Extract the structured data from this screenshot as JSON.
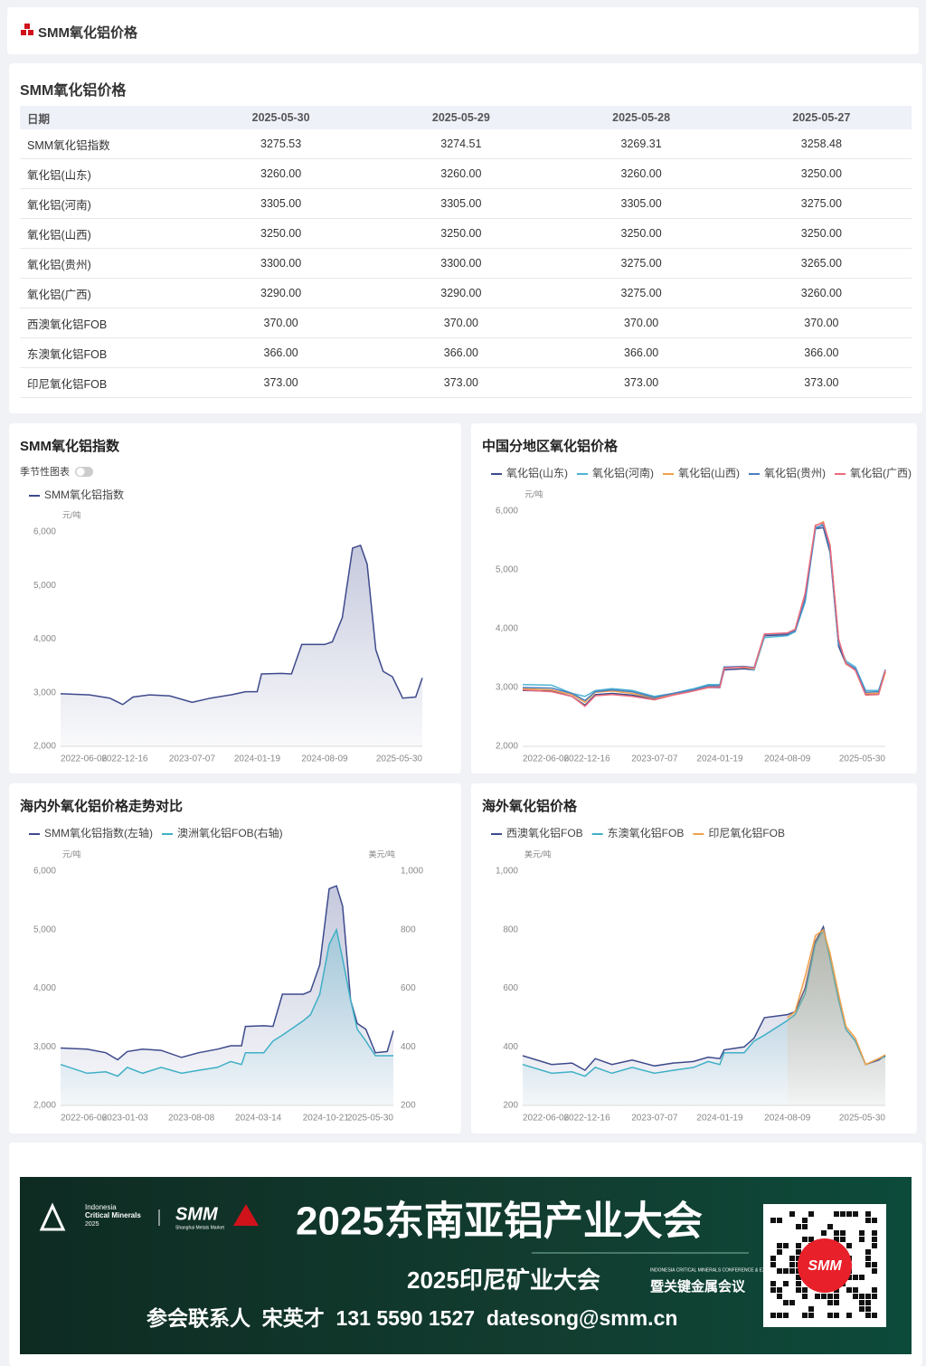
{
  "header": {
    "title": "SMM氧化铝价格"
  },
  "table": {
    "title": "SMM氧化铝价格",
    "columns": [
      "日期",
      "2025-05-30",
      "2025-05-29",
      "2025-05-28",
      "2025-05-27"
    ],
    "rows": [
      [
        "SMM氧化铝指数",
        "3275.53",
        "3274.51",
        "3269.31",
        "3258.48"
      ],
      [
        "氧化铝(山东)",
        "3260.00",
        "3260.00",
        "3260.00",
        "3250.00"
      ],
      [
        "氧化铝(河南)",
        "3305.00",
        "3305.00",
        "3305.00",
        "3275.00"
      ],
      [
        "氧化铝(山西)",
        "3250.00",
        "3250.00",
        "3250.00",
        "3250.00"
      ],
      [
        "氧化铝(贵州)",
        "3300.00",
        "3300.00",
        "3275.00",
        "3265.00"
      ],
      [
        "氧化铝(广西)",
        "3290.00",
        "3290.00",
        "3275.00",
        "3260.00"
      ],
      [
        "西澳氧化铝FOB",
        "370.00",
        "370.00",
        "370.00",
        "370.00"
      ],
      [
        "东澳氧化铝FOB",
        "366.00",
        "366.00",
        "366.00",
        "366.00"
      ],
      [
        "印尼氧化铝FOB",
        "373.00",
        "373.00",
        "373.00",
        "373.00"
      ]
    ]
  },
  "chart_data": [
    {
      "type": "line",
      "title": "SMM氧化铝指数",
      "toggle_label": "季节性图表",
      "y_unit": "元/吨",
      "area": true,
      "grid": false,
      "x": [
        "2022-06-06",
        "2022-09-01",
        "2022-11-01",
        "2022-12-10",
        "2023-01-10",
        "2023-03-01",
        "2023-05-01",
        "2023-07-07",
        "2023-09-01",
        "2023-11-01",
        "2023-12-15",
        "2024-01-19",
        "2024-02-01",
        "2024-04-01",
        "2024-05-01",
        "2024-06-01",
        "2024-08-09",
        "2024-09-01",
        "2024-10-01",
        "2024-11-01",
        "2024-11-25",
        "2024-12-15",
        "2025-01-10",
        "2025-02-01",
        "2025-03-01",
        "2025-04-01",
        "2025-05-10",
        "2025-05-30"
      ],
      "xlim": [
        "2022-06-06",
        "2025-05-30"
      ],
      "xticks": [
        "2022-06-06",
        "2022-12-16",
        "2023-07-07",
        "2024-01-19",
        "2024-08-09",
        "2025-05-30"
      ],
      "ylim": [
        2000,
        6000
      ],
      "yticks": [
        {
          "value": 2000,
          "label": "2,000"
        },
        {
          "value": 3000,
          "label": "3,000"
        },
        {
          "value": 4000,
          "label": "4,000"
        },
        {
          "value": 5000,
          "label": "5,000"
        },
        {
          "value": 6000,
          "label": "6,000"
        }
      ],
      "series": [
        {
          "name": "SMM氧化铝指数",
          "color": "#3e4a8c",
          "values": [
            2980,
            2960,
            2900,
            2780,
            2920,
            2960,
            2940,
            2820,
            2900,
            2960,
            3020,
            3020,
            3350,
            3360,
            3350,
            3900,
            3900,
            3950,
            4400,
            5700,
            5750,
            5400,
            3800,
            3400,
            3300,
            2900,
            2920,
            3275.53
          ]
        }
      ]
    },
    {
      "type": "line",
      "title": "中国分地区氧化铝价格",
      "y_unit": "元/吨",
      "area": false,
      "grid": false,
      "x": [
        "2022-06-06",
        "2022-09-01",
        "2022-11-01",
        "2022-12-10",
        "2023-01-10",
        "2023-03-01",
        "2023-05-01",
        "2023-07-07",
        "2023-09-01",
        "2023-11-01",
        "2023-12-15",
        "2024-01-19",
        "2024-02-01",
        "2024-04-01",
        "2024-05-01",
        "2024-06-01",
        "2024-08-09",
        "2024-09-01",
        "2024-10-01",
        "2024-11-01",
        "2024-11-25",
        "2024-12-15",
        "2025-01-10",
        "2025-02-01",
        "2025-03-01",
        "2025-04-01",
        "2025-05-10",
        "2025-05-30"
      ],
      "xlim": [
        "2022-06-06",
        "2025-05-30"
      ],
      "xticks": [
        "2022-06-06",
        "2022-12-16",
        "2023-07-07",
        "2024-01-19",
        "2024-08-09",
        "2025-05-30"
      ],
      "ylim": [
        2000,
        6000
      ],
      "yticks": [
        {
          "value": 2000,
          "label": "2,000"
        },
        {
          "value": 3000,
          "label": "3,000"
        },
        {
          "value": 4000,
          "label": "4,000"
        },
        {
          "value": 5000,
          "label": "5,000"
        },
        {
          "value": 6000,
          "label": "6,000"
        }
      ],
      "series": [
        {
          "name": "氧化铝(山东)",
          "color": "#3e4a8c",
          "values": [
            2950,
            2940,
            2850,
            2700,
            2880,
            2900,
            2870,
            2800,
            2880,
            2950,
            3000,
            3000,
            3300,
            3320,
            3300,
            3880,
            3900,
            3950,
            4500,
            5700,
            5720,
            5300,
            3700,
            3400,
            3300,
            2880,
            2900,
            3260
          ]
        },
        {
          "name": "氧化铝(河南)",
          "color": "#4fb3d4",
          "values": [
            3050,
            3040,
            2900,
            2850,
            2950,
            2980,
            2950,
            2850,
            2900,
            2980,
            3050,
            3050,
            3350,
            3350,
            3300,
            3850,
            3880,
            3950,
            4450,
            5700,
            5780,
            5350,
            3750,
            3450,
            3350,
            2950,
            2950,
            3305
          ]
        },
        {
          "name": "氧化铝(山西)",
          "color": "#f0a04b",
          "values": [
            2980,
            2960,
            2880,
            2750,
            2920,
            2940,
            2900,
            2820,
            2880,
            2950,
            3020,
            3020,
            3340,
            3340,
            3320,
            3900,
            3920,
            3980,
            4550,
            5750,
            5820,
            5400,
            3800,
            3400,
            3300,
            2900,
            2900,
            3250
          ]
        },
        {
          "name": "氧化铝(贵州)",
          "color": "#4a7fc1",
          "values": [
            3000,
            2990,
            2900,
            2780,
            2930,
            2960,
            2930,
            2830,
            2900,
            2960,
            3030,
            3030,
            3350,
            3360,
            3340,
            3900,
            3920,
            3960,
            4500,
            5720,
            5760,
            5380,
            3780,
            3420,
            3320,
            2920,
            2930,
            3300
          ]
        },
        {
          "name": "氧化铝(广西)",
          "color": "#ec6b7d",
          "values": [
            2960,
            2930,
            2850,
            2680,
            2860,
            2880,
            2850,
            2790,
            2870,
            2940,
            3000,
            3010,
            3330,
            3350,
            3330,
            3910,
            3930,
            3990,
            4600,
            5760,
            5800,
            5420,
            3820,
            3410,
            3290,
            2870,
            2880,
            3290
          ]
        }
      ]
    },
    {
      "type": "line",
      "title": "海内外氧化铝价格走势对比",
      "y_unit": "元/吨",
      "y2_unit": "美元/吨",
      "area": true,
      "grid": false,
      "x": [
        "2022-06-06",
        "2022-09-01",
        "2022-11-01",
        "2022-12-10",
        "2023-01-10",
        "2023-03-01",
        "2023-05-01",
        "2023-07-07",
        "2023-09-01",
        "2023-11-01",
        "2023-12-15",
        "2024-01-19",
        "2024-02-01",
        "2024-04-01",
        "2024-05-01",
        "2024-06-01",
        "2024-08-09",
        "2024-09-01",
        "2024-10-01",
        "2024-11-01",
        "2024-11-25",
        "2024-12-15",
        "2025-01-10",
        "2025-02-01",
        "2025-03-01",
        "2025-04-01",
        "2025-05-10",
        "2025-05-30"
      ],
      "xlim": [
        "2022-06-06",
        "2025-05-30"
      ],
      "xticks": [
        "2022-06-06",
        "2023-01-03",
        "2023-08-08",
        "2024-03-14",
        "2024-10-21",
        "2025-05-30"
      ],
      "ylim": [
        2000,
        6000
      ],
      "yticks": [
        {
          "value": 2000,
          "label": "2,000"
        },
        {
          "value": 3000,
          "label": "3,000"
        },
        {
          "value": 4000,
          "label": "4,000"
        },
        {
          "value": 5000,
          "label": "5,000"
        },
        {
          "value": 6000,
          "label": "6,000"
        }
      ],
      "y2lim": [
        200,
        1000
      ],
      "y2ticks": [
        200,
        400,
        600,
        800,
        {
          "value": 1000,
          "label": "1,000"
        }
      ],
      "series": [
        {
          "name": "SMM氧化铝指数(左轴)",
          "color": "#3e4a8c",
          "values": [
            2980,
            2960,
            2900,
            2780,
            2920,
            2960,
            2940,
            2820,
            2900,
            2960,
            3020,
            3020,
            3350,
            3360,
            3350,
            3900,
            3900,
            3950,
            4400,
            5700,
            5750,
            5400,
            3800,
            3400,
            3300,
            2900,
            2920,
            3275.53
          ]
        },
        {
          "name": "澳洲氧化铝FOB(右轴)",
          "color": "#3fb0c6",
          "axis": "y2",
          "values": [
            340,
            310,
            315,
            300,
            330,
            310,
            330,
            310,
            320,
            330,
            350,
            340,
            380,
            380,
            420,
            440,
            490,
            510,
            580,
            750,
            800,
            700,
            560,
            460,
            420,
            370,
            370,
            370
          ]
        }
      ]
    },
    {
      "type": "line",
      "title": "海外氧化铝价格",
      "y_unit": "美元/吨",
      "area": true,
      "grid": false,
      "x": [
        "2022-06-06",
        "2022-09-01",
        "2022-11-01",
        "2022-12-10",
        "2023-01-10",
        "2023-03-01",
        "2023-05-01",
        "2023-07-07",
        "2023-09-01",
        "2023-11-01",
        "2023-12-15",
        "2024-01-19",
        "2024-02-01",
        "2024-04-01",
        "2024-05-01",
        "2024-06-01",
        "2024-08-09",
        "2024-09-01",
        "2024-10-01",
        "2024-11-01",
        "2024-11-25",
        "2024-12-15",
        "2025-01-10",
        "2025-02-01",
        "2025-03-01",
        "2025-04-01",
        "2025-05-10",
        "2025-05-30"
      ],
      "xlim": [
        "2022-06-06",
        "2025-05-30"
      ],
      "xticks": [
        "2022-06-06",
        "2022-12-16",
        "2023-07-07",
        "2024-01-19",
        "2024-08-09",
        "2025-05-30"
      ],
      "ylim": [
        200,
        1000
      ],
      "yticks": [
        200,
        400,
        600,
        800,
        {
          "value": 1000,
          "label": "1,000"
        }
      ],
      "series": [
        {
          "name": "西澳氧化铝FOB",
          "color": "#3e4a8c",
          "values": [
            370,
            340,
            345,
            320,
            360,
            340,
            355,
            335,
            345,
            350,
            365,
            360,
            390,
            400,
            430,
            500,
            510,
            520,
            600,
            760,
            810,
            700,
            560,
            460,
            420,
            340,
            355,
            370
          ]
        },
        {
          "name": "东澳氧化铝FOB",
          "color": "#3fb0c6",
          "values": [
            340,
            310,
            315,
            300,
            330,
            310,
            330,
            310,
            320,
            330,
            350,
            340,
            380,
            380,
            420,
            440,
            490,
            510,
            580,
            750,
            800,
            700,
            560,
            460,
            420,
            340,
            360,
            366
          ]
        },
        {
          "name": "印尼氧化铝FOB",
          "color": "#f0a04b",
          "values": [
            null,
            null,
            null,
            null,
            null,
            null,
            null,
            null,
            null,
            null,
            null,
            null,
            null,
            null,
            null,
            null,
            500,
            520,
            640,
            780,
            800,
            720,
            580,
            470,
            430,
            340,
            360,
            373
          ]
        }
      ]
    }
  ],
  "banner": {
    "org1": "Indonesia",
    "org2": "Critical Minerals",
    "org3": "2025",
    "logo": "SMM",
    "logo_sub": "Shanghai Metals Market",
    "headline": "2025东南亚铝产业大会",
    "sub1": "2025印尼矿业大会",
    "sub_en": "INDONESIA CRITICAL MINERALS CONFERENCE & EXPO",
    "sub2": "暨关键金属会议",
    "contact": "参会联系人  宋英才  131 5590 1527  datesong@smm.cn",
    "qr_logo": "SMM"
  }
}
